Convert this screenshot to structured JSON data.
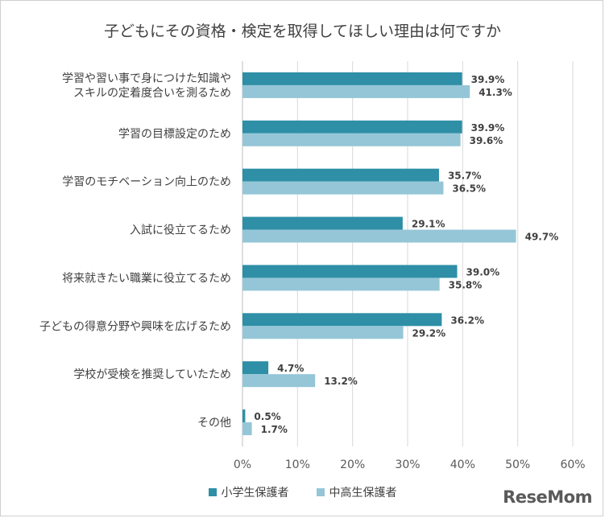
{
  "chart_data": {
    "type": "bar",
    "orientation": "horizontal",
    "title": "子どもにその資格・検定を取得してほしい理由は何ですか",
    "categories": [
      [
        "学習や習い事で身につけた知識や",
        "スキルの定着度合いを測るため"
      ],
      [
        "学習の目標設定のため"
      ],
      [
        "学習のモチベーション向上のため"
      ],
      [
        "入試に役立てるため"
      ],
      [
        "将来就きたい職業に役立てるため"
      ],
      [
        "子どもの得意分野や興味を広げるため"
      ],
      [
        "学校が受検を推奨していたため"
      ],
      [
        "その他"
      ]
    ],
    "series": [
      {
        "name": "小学生保護者",
        "color": "#2e8fa6",
        "values": [
          39.9,
          39.9,
          35.7,
          29.1,
          39.0,
          36.2,
          4.7,
          0.5
        ]
      },
      {
        "name": "中高生保護者",
        "color": "#95c6d7",
        "values": [
          41.3,
          39.6,
          36.5,
          49.7,
          35.8,
          29.2,
          13.2,
          1.7
        ]
      }
    ],
    "xlim": [
      0,
      60
    ],
    "xticks": [
      "0%",
      "10%",
      "20%",
      "30%",
      "40%",
      "50%",
      "60%"
    ],
    "value_suffix": "%",
    "grid": true,
    "legend_position": "bottom"
  },
  "watermark": "ReseMom"
}
